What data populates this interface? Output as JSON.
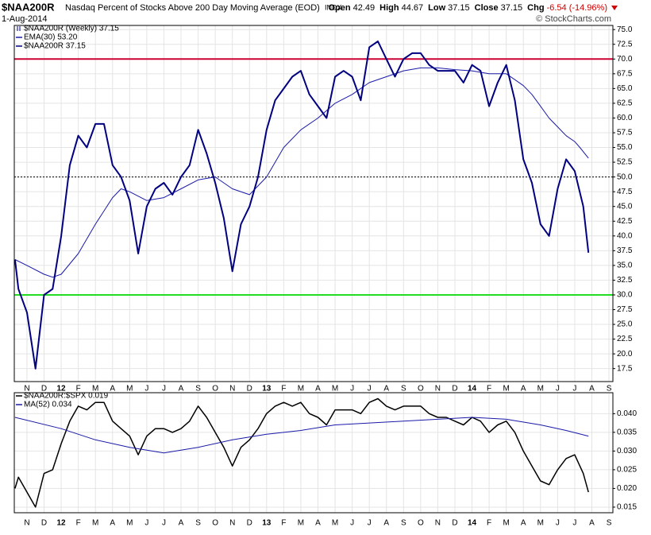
{
  "header": {
    "symbol": "$NAA200R",
    "description": "Nasdaq Percent of Stocks Above 200 Day Moving Average (EOD)",
    "exchange": "INDX",
    "date": "1-Aug-2014",
    "copyright": "© StockCharts.com",
    "stats": [
      {
        "label": "Open",
        "value": "42.49"
      },
      {
        "label": "High",
        "value": "44.67"
      },
      {
        "label": "Low",
        "value": "37.15"
      },
      {
        "label": "Close",
        "value": "37.15"
      },
      {
        "label": "Chg",
        "value": "-6.54 (-14.96%)"
      }
    ]
  },
  "chart_data": [
    {
      "type": "line",
      "legend_title": "$NAA200R (Weekly) 37.15",
      "grid": true,
      "xlim": [
        -0.74,
        34.23
      ],
      "ylim": [
        15.3,
        75.7
      ],
      "xticks": [
        {
          "value": 0,
          "label": "N"
        },
        {
          "value": 1,
          "label": "D"
        },
        {
          "value": 2,
          "label": "12"
        },
        {
          "value": 3,
          "label": "F"
        },
        {
          "value": 4,
          "label": "M"
        },
        {
          "value": 5,
          "label": "A"
        },
        {
          "value": 6,
          "label": "M"
        },
        {
          "value": 7,
          "label": "J"
        },
        {
          "value": 8,
          "label": "J"
        },
        {
          "value": 9,
          "label": "A"
        },
        {
          "value": 10,
          "label": "S"
        },
        {
          "value": 11,
          "label": "O"
        },
        {
          "value": 12,
          "label": "N"
        },
        {
          "value": 13,
          "label": "D"
        },
        {
          "value": 14,
          "label": "13"
        },
        {
          "value": 15,
          "label": "F"
        },
        {
          "value": 16,
          "label": "M"
        },
        {
          "value": 17,
          "label": "A"
        },
        {
          "value": 18,
          "label": "M"
        },
        {
          "value": 19,
          "label": "J"
        },
        {
          "value": 20,
          "label": "J"
        },
        {
          "value": 21,
          "label": "A"
        },
        {
          "value": 22,
          "label": "S"
        },
        {
          "value": 23,
          "label": "O"
        },
        {
          "value": 24,
          "label": "N"
        },
        {
          "value": 25,
          "label": "D"
        },
        {
          "value": 26,
          "label": "14"
        },
        {
          "value": 27,
          "label": "F"
        },
        {
          "value": 28,
          "label": "M"
        },
        {
          "value": 29,
          "label": "A"
        },
        {
          "value": 30,
          "label": "M"
        },
        {
          "value": 31,
          "label": "J"
        },
        {
          "value": 32,
          "label": "J"
        },
        {
          "value": 33,
          "label": "A"
        },
        {
          "value": 34,
          "label": "S"
        }
      ],
      "yticks": [
        17.5,
        {
          "value": 20,
          "label": "20.0"
        },
        22.5,
        {
          "value": 25,
          "label": "25.0"
        },
        27.5,
        {
          "value": 30,
          "label": "30.0"
        },
        32.5,
        {
          "value": 35,
          "label": "35.0"
        },
        37.5,
        {
          "value": 40,
          "label": "40.0"
        },
        42.5,
        {
          "value": 45,
          "label": "45.0"
        },
        47.5,
        {
          "value": 50,
          "label": "50.0"
        },
        52.5,
        {
          "value": 55,
          "label": "55.0"
        },
        57.5,
        {
          "value": 60,
          "label": "60.0"
        },
        62.5,
        {
          "value": 65,
          "label": "65.0"
        },
        67.5,
        {
          "value": 70,
          "label": "70.0"
        },
        72.5,
        {
          "value": 75,
          "label": "75.0"
        }
      ],
      "reference_lines": [
        {
          "value": 70,
          "color": "#cc0033",
          "style": "solid"
        },
        {
          "value": 50,
          "color": "#000000",
          "style": "dotted"
        },
        {
          "value": 30,
          "color": "#22dd22",
          "style": "solid"
        }
      ],
      "series": [
        {
          "name": "EMA(30) 53.20",
          "color": "#1a1aa8",
          "width": 1,
          "x": [
            -0.7,
            0,
            1,
            1.5,
            2,
            3,
            4,
            5,
            5.5,
            6,
            7,
            8,
            9,
            10,
            11,
            12,
            13,
            14,
            15,
            16,
            17,
            18,
            19,
            20,
            21,
            22,
            23,
            24,
            25,
            26,
            27,
            28,
            28.5,
            29,
            29.5,
            30,
            30.5,
            31,
            31.5,
            32,
            32.3,
            32.8
          ],
          "values": [
            36,
            35,
            33.5,
            33,
            33.5,
            37,
            42,
            46.5,
            48,
            47.5,
            46,
            46.5,
            48,
            49.5,
            50,
            48,
            47,
            50,
            55,
            58,
            60,
            62.5,
            64,
            66,
            67,
            68,
            68.5,
            68.5,
            68.2,
            68,
            67.5,
            67.5,
            66.5,
            65.5,
            64,
            62,
            60,
            58.5,
            57,
            56,
            55,
            53.2
          ]
        },
        {
          "name": "$NAA200R 37.15",
          "color": "#000080",
          "width": 2,
          "x": [
            -0.7,
            -0.5,
            0,
            0.5,
            1,
            1.5,
            2,
            2.5,
            3,
            3.5,
            4,
            4.5,
            5,
            5.5,
            6,
            6.5,
            7,
            7.5,
            8,
            8.5,
            9,
            9.5,
            10,
            10.5,
            11,
            11.5,
            12,
            12.5,
            13,
            13.5,
            14,
            14.5,
            15,
            15.5,
            16,
            16.5,
            17,
            17.5,
            18,
            18.5,
            19,
            19.5,
            20,
            20.5,
            21,
            21.5,
            22,
            22.5,
            23,
            23.5,
            24,
            24.5,
            25,
            25.5,
            26,
            26.5,
            27,
            27.5,
            28,
            28.5,
            29,
            29.5,
            30,
            30.5,
            31,
            31.5,
            32,
            32.5,
            32.8
          ],
          "values": [
            36,
            31,
            27,
            17.5,
            30,
            31,
            40,
            52,
            57,
            55,
            59,
            59,
            52,
            50,
            46,
            37,
            45,
            48,
            49,
            47,
            50,
            52,
            58,
            54,
            49,
            43,
            34,
            42,
            45,
            50,
            58,
            63,
            65,
            67,
            68,
            64,
            62,
            60,
            67,
            68,
            67,
            63,
            72,
            73,
            70,
            67,
            70,
            71,
            71,
            69,
            68,
            68,
            68,
            66,
            69,
            68,
            62,
            66,
            69,
            63,
            53,
            49,
            42,
            40,
            48,
            53,
            51,
            45,
            37.15
          ]
        }
      ]
    },
    {
      "type": "line",
      "grid": true,
      "xlim": [
        -0.74,
        34.23
      ],
      "ylim": [
        0.0135,
        0.0456
      ],
      "xticks": [
        {
          "value": 0,
          "label": "N"
        },
        {
          "value": 1,
          "label": "D"
        },
        {
          "value": 2,
          "label": "12"
        },
        {
          "value": 3,
          "label": "F"
        },
        {
          "value": 4,
          "label": "M"
        },
        {
          "value": 5,
          "label": "A"
        },
        {
          "value": 6,
          "label": "M"
        },
        {
          "value": 7,
          "label": "J"
        },
        {
          "value": 8,
          "label": "J"
        },
        {
          "value": 9,
          "label": "A"
        },
        {
          "value": 10,
          "label": "S"
        },
        {
          "value": 11,
          "label": "O"
        },
        {
          "value": 12,
          "label": "N"
        },
        {
          "value": 13,
          "label": "D"
        },
        {
          "value": 14,
          "label": "13"
        },
        {
          "value": 15,
          "label": "F"
        },
        {
          "value": 16,
          "label": "M"
        },
        {
          "value": 17,
          "label": "A"
        },
        {
          "value": 18,
          "label": "M"
        },
        {
          "value": 19,
          "label": "J"
        },
        {
          "value": 20,
          "label": "J"
        },
        {
          "value": 21,
          "label": "A"
        },
        {
          "value": 22,
          "label": "S"
        },
        {
          "value": 23,
          "label": "O"
        },
        {
          "value": 24,
          "label": "N"
        },
        {
          "value": 25,
          "label": "D"
        },
        {
          "value": 26,
          "label": "14"
        },
        {
          "value": 27,
          "label": "F"
        },
        {
          "value": 28,
          "label": "M"
        },
        {
          "value": 29,
          "label": "A"
        },
        {
          "value": 30,
          "label": "M"
        },
        {
          "value": 31,
          "label": "J"
        },
        {
          "value": 32,
          "label": "J"
        },
        {
          "value": 33,
          "label": "A"
        },
        {
          "value": 34,
          "label": "S"
        }
      ],
      "yticks": [
        0.015,
        {
          "value": 0.02,
          "label": "0.020"
        },
        0.025,
        {
          "value": 0.03,
          "label": "0.030"
        },
        0.035,
        {
          "value": 0.04,
          "label": "0.040"
        }
      ],
      "series": [
        {
          "name": "$NAA200R:$SPX 0.019",
          "color": "#000000",
          "width": 1.5,
          "x": [
            -0.7,
            -0.5,
            0,
            0.5,
            1,
            1.5,
            2,
            2.5,
            3,
            3.5,
            4,
            4.5,
            5,
            5.5,
            6,
            6.5,
            7,
            7.5,
            8,
            8.5,
            9,
            9.5,
            10,
            10.5,
            11,
            11.5,
            12,
            12.5,
            13,
            13.5,
            14,
            14.5,
            15,
            15.5,
            16,
            16.5,
            17,
            17.5,
            18,
            18.5,
            19,
            19.5,
            20,
            20.5,
            21,
            21.5,
            22,
            22.5,
            23,
            23.5,
            24,
            24.5,
            25,
            25.5,
            26,
            26.5,
            27,
            27.5,
            28,
            28.5,
            29,
            29.5,
            30,
            30.5,
            31,
            31.5,
            32,
            32.5,
            32.8
          ],
          "values": [
            0.02,
            0.023,
            0.019,
            0.015,
            0.024,
            0.025,
            0.032,
            0.038,
            0.042,
            0.041,
            0.043,
            0.043,
            0.038,
            0.036,
            0.034,
            0.029,
            0.034,
            0.036,
            0.036,
            0.035,
            0.036,
            0.038,
            0.042,
            0.039,
            0.035,
            0.031,
            0.026,
            0.031,
            0.033,
            0.036,
            0.04,
            0.042,
            0.043,
            0.042,
            0.043,
            0.04,
            0.039,
            0.037,
            0.041,
            0.041,
            0.041,
            0.04,
            0.043,
            0.044,
            0.042,
            0.041,
            0.042,
            0.042,
            0.042,
            0.04,
            0.039,
            0.039,
            0.038,
            0.037,
            0.039,
            0.038,
            0.035,
            0.037,
            0.038,
            0.035,
            0.03,
            0.026,
            0.022,
            0.021,
            0.025,
            0.028,
            0.029,
            0.024,
            0.019
          ]
        },
        {
          "name": "MA(52) 0.034",
          "color": "#1a1aa8",
          "width": 1,
          "x": [
            -0.7,
            2,
            4,
            6,
            8,
            10,
            12,
            14,
            16,
            18,
            20,
            22,
            24,
            26,
            28,
            30,
            31.5,
            32.8
          ],
          "values": [
            0.039,
            0.036,
            0.033,
            0.031,
            0.0295,
            0.031,
            0.033,
            0.0345,
            0.0355,
            0.037,
            0.0375,
            0.038,
            0.0385,
            0.039,
            0.0385,
            0.037,
            0.0355,
            0.034
          ]
        }
      ]
    }
  ]
}
